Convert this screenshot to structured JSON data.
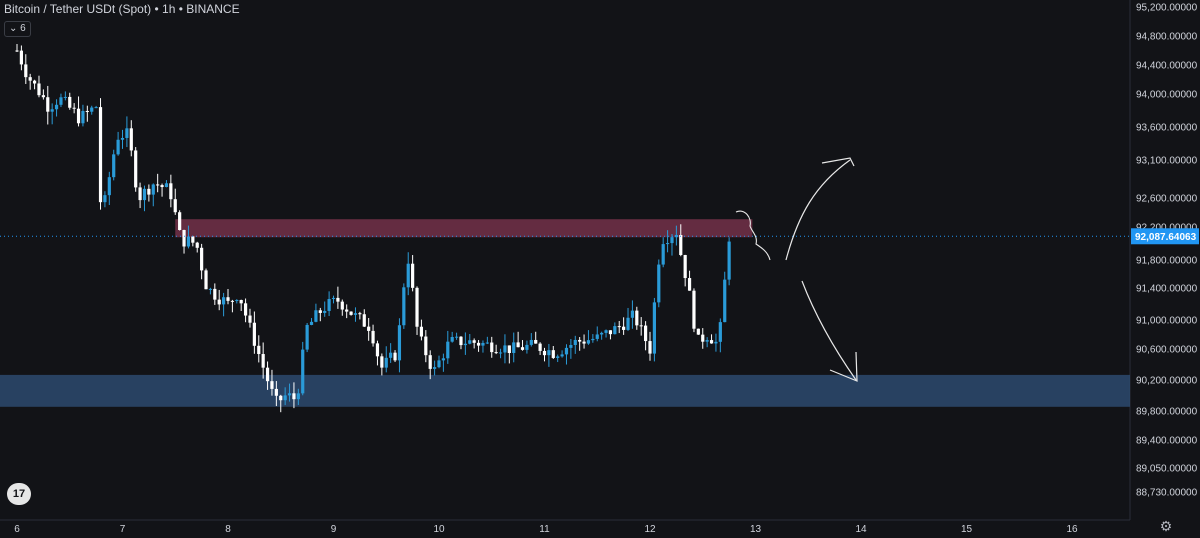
{
  "header": {
    "symbol": "Bitcoin / Tether USDt (Spot) • 1h • BINANCE",
    "indicator_badge": "6",
    "logo_text": "17"
  },
  "colors": {
    "background": "#121317",
    "up": "#2a9bd8",
    "down": "#ffffff",
    "resistance_zone": "#6e3046",
    "support_zone": "#2d4a6f",
    "price_label_bg": "#2196f3"
  },
  "icons": {
    "indicator_toggle": "chevron-down-icon",
    "settings": "gear-icon",
    "logo": "tradingview-logo-icon"
  },
  "chart_data": {
    "type": "candlestick",
    "price_axis": {
      "ticks": [
        "95,200.00000",
        "94,800.00000",
        "94,400.00000",
        "94,000.00000",
        "93,600.00000",
        "93,100.00000",
        "92,600.00000",
        "92,200.00000",
        "91,800.00000",
        "91,400.00000",
        "91,000.00000",
        "90,600.00000",
        "90,200.00000",
        "89,800.00000",
        "89,400.00000",
        "89,050.00000",
        "88,730.00000"
      ]
    },
    "time_axis": {
      "ticks": [
        "6",
        "7",
        "8",
        "9",
        "10",
        "11",
        "12",
        "13",
        "14",
        "15",
        "16"
      ]
    },
    "current_price": "92,087.64063",
    "zones": [
      {
        "name": "resistance",
        "from_day": 7.5,
        "to_day": 12.97,
        "high": 92280,
        "low": 92100
      },
      {
        "name": "support",
        "from_day": 5.8,
        "to_day": 16.6,
        "high": 90240,
        "low": 89880
      }
    ],
    "projection_arrows": [
      {
        "direction": "up",
        "target_price": 93120
      },
      {
        "direction": "down",
        "target_price": 90200
      }
    ],
    "candles_summary": {
      "start_price": 94600,
      "low_day8": 89620,
      "range_low": 90240,
      "range_high": 91200,
      "last_close": 92087.64
    }
  }
}
